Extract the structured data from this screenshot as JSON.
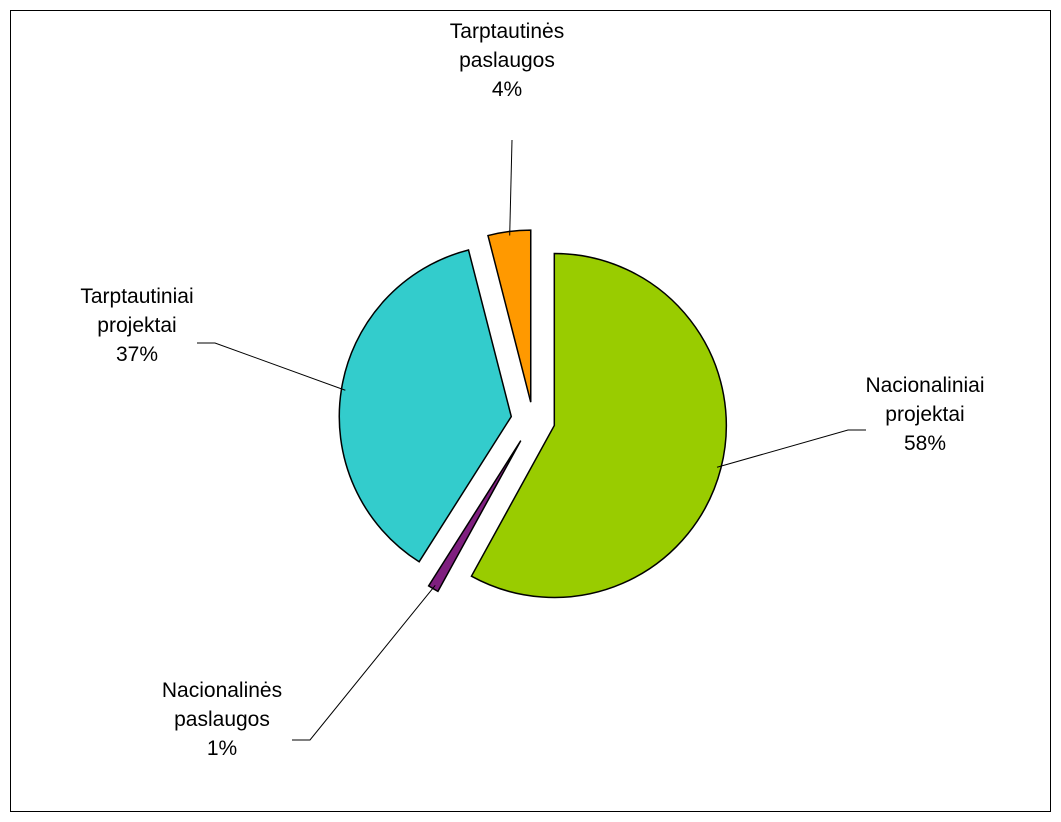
{
  "chart_data": {
    "type": "pie",
    "categories": [
      "Nacionaliniai projektai",
      "Nacionalinės paslaugos",
      "Tarptautiniai projektai",
      "Tarptautinės paslaugos"
    ],
    "values": [
      58,
      1,
      37,
      4
    ],
    "value_labels": [
      "58%",
      "1%",
      "37%",
      "4%"
    ],
    "colors": [
      "#99cc00",
      "#7f1f7f",
      "#33cccc",
      "#ff9900"
    ]
  }
}
